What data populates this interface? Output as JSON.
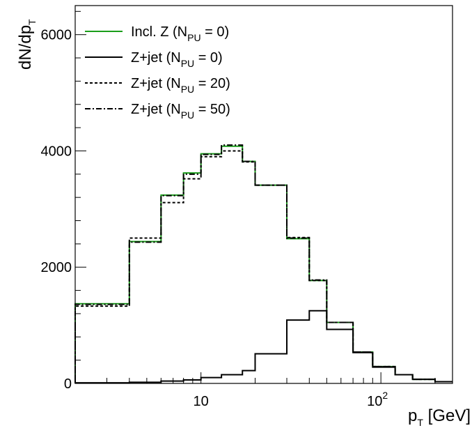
{
  "chart_data": {
    "type": "line",
    "subtype": "step-histogram",
    "xlabel": {
      "main": "p",
      "sub": "T",
      "unit": " [GeV]"
    },
    "ylabel": {
      "main": "dN/dp",
      "sub": "T"
    },
    "xscale": "log",
    "xlim": [
      2,
      250
    ],
    "ylim": [
      0,
      6500
    ],
    "grid": false,
    "legend_position": "top-left",
    "y_ticks": [
      {
        "value": 0,
        "label": "0"
      },
      {
        "value": 2000,
        "label": "2000"
      },
      {
        "value": 4000,
        "label": "4000"
      },
      {
        "value": 6000,
        "label": "6000"
      }
    ],
    "x_ticks": [
      {
        "value": 10,
        "base": "10",
        "exp": ""
      },
      {
        "value": 100,
        "base": "10",
        "exp": "2"
      }
    ],
    "bin_edges": [
      2,
      4,
      6,
      8,
      10,
      13,
      17,
      20,
      30,
      40,
      50,
      70,
      90,
      120,
      150,
      200,
      250
    ],
    "series": [
      {
        "name": "Incl. Z (N",
        "name_sub": "PU",
        "name_end": " = 0)",
        "color": "#1a9e1a",
        "dash": "",
        "values": [
          1370,
          2440,
          3240,
          3620,
          3950,
          4080,
          3820,
          3410,
          2490,
          1770,
          1050,
          540,
          290,
          150,
          70,
          30
        ]
      },
      {
        "name": "Z+jet (N",
        "name_sub": "PU",
        "name_end": " = 0)",
        "color": "#000000",
        "dash": "",
        "values": [
          10,
          20,
          40,
          60,
          100,
          150,
          220,
          510,
          1090,
          1250,
          930,
          530,
          280,
          150,
          70,
          30
        ]
      },
      {
        "name": "Z+jet (N",
        "name_sub": "PU",
        "name_end": " = 20)",
        "color": "#000000",
        "dash": "4,3",
        "values": [
          1330,
          2500,
          3110,
          3520,
          3900,
          4000,
          3810,
          3410,
          2510,
          1770,
          1050,
          540,
          290,
          150,
          70,
          30
        ]
      },
      {
        "name": "Z+jet (N",
        "name_sub": "PU",
        "name_end": " = 50)",
        "color": "#000000",
        "dash": "8,3,2,3",
        "values": [
          1360,
          2430,
          3230,
          3600,
          3940,
          4100,
          3820,
          3410,
          2500,
          1780,
          1050,
          540,
          290,
          150,
          70,
          30
        ]
      }
    ]
  }
}
